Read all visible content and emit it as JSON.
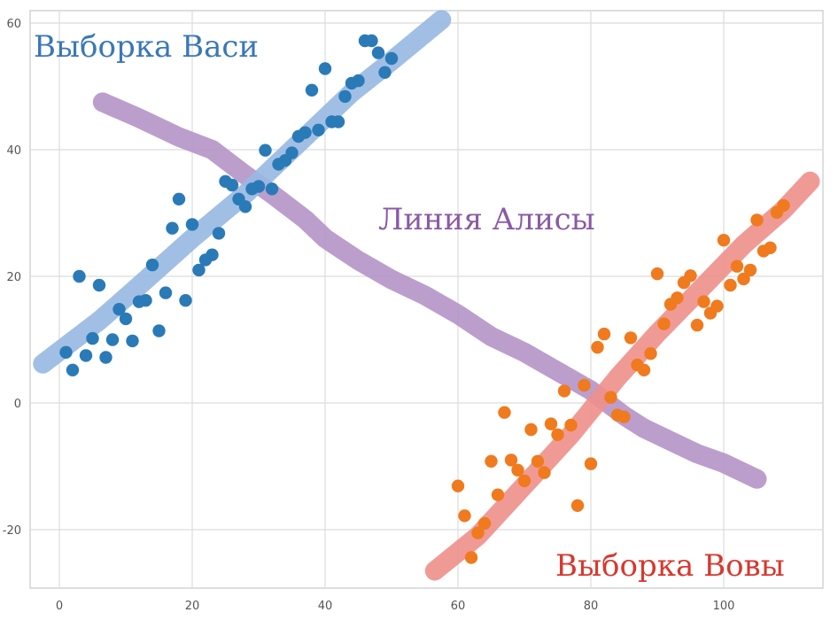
{
  "chart_data": {
    "type": "scatter",
    "xlim": [
      -4,
      115
    ],
    "ylim": [
      -29,
      62
    ],
    "grid": true,
    "x_ticks": [
      0,
      20,
      40,
      60,
      80,
      100
    ],
    "y_ticks": [
      60,
      40,
      20,
      0,
      -20
    ],
    "series": [
      {
        "name": "Выборка Васи",
        "color": "#2a7ab8",
        "points": [
          [
            1,
            8
          ],
          [
            2,
            5.2
          ],
          [
            3,
            20
          ],
          [
            4,
            7.5
          ],
          [
            5,
            10.2
          ],
          [
            6,
            18.6
          ],
          [
            7,
            7.2
          ],
          [
            8,
            10
          ],
          [
            9,
            14.8
          ],
          [
            10,
            13.3
          ],
          [
            11,
            9.8
          ],
          [
            12,
            16
          ],
          [
            13,
            16.2
          ],
          [
            14,
            21.8
          ],
          [
            15,
            11.4
          ],
          [
            16,
            17.4
          ],
          [
            17,
            27.6
          ],
          [
            18,
            32.2
          ],
          [
            19,
            16.2
          ],
          [
            20,
            28.2
          ],
          [
            21,
            21
          ],
          [
            22,
            22.6
          ],
          [
            23,
            23.4
          ],
          [
            24,
            26.8
          ],
          [
            25,
            35
          ],
          [
            26,
            34.4
          ],
          [
            27,
            32.2
          ],
          [
            28,
            31
          ],
          [
            29,
            33.8
          ],
          [
            30,
            34.2
          ],
          [
            31,
            39.9
          ],
          [
            32,
            33.8
          ],
          [
            33,
            37.7
          ],
          [
            34,
            38.3
          ],
          [
            35,
            39.5
          ],
          [
            36,
            42.1
          ],
          [
            37,
            42.7
          ],
          [
            38,
            49.4
          ],
          [
            39,
            43.1
          ],
          [
            40,
            52.8
          ],
          [
            41,
            44.4
          ],
          [
            42,
            44.4
          ],
          [
            43,
            48.4
          ],
          [
            44,
            50.5
          ],
          [
            45,
            50.9
          ],
          [
            46,
            57.2
          ],
          [
            47,
            57.2
          ],
          [
            48,
            55.3
          ],
          [
            49,
            52.2
          ],
          [
            50,
            54.4
          ]
        ]
      },
      {
        "name": "Выборка Вовы",
        "color": "#f07a1e",
        "points": [
          [
            60,
            -13.1
          ],
          [
            61,
            -17.8
          ],
          [
            62,
            -24.4
          ],
          [
            63,
            -20.5
          ],
          [
            64,
            -19
          ],
          [
            65,
            -9.2
          ],
          [
            66,
            -14.5
          ],
          [
            67,
            -1.5
          ],
          [
            68,
            -9
          ],
          [
            69,
            -10.6
          ],
          [
            70,
            -12.3
          ],
          [
            71,
            -4.2
          ],
          [
            72,
            -9.2
          ],
          [
            73,
            -11
          ],
          [
            74,
            -3.3
          ],
          [
            75,
            -5
          ],
          [
            76,
            1.9
          ],
          [
            77,
            -3.5
          ],
          [
            78,
            -16.2
          ],
          [
            79,
            2.8
          ],
          [
            80,
            -9.6
          ],
          [
            81,
            8.8
          ],
          [
            82,
            10.9
          ],
          [
            83,
            0.9
          ],
          [
            84,
            -1.9
          ],
          [
            85,
            -2.2
          ],
          [
            86,
            10.3
          ],
          [
            87,
            6
          ],
          [
            88,
            5.2
          ],
          [
            89,
            7.8
          ],
          [
            90,
            20.4
          ],
          [
            91,
            12.5
          ],
          [
            92,
            15.6
          ],
          [
            93,
            16.6
          ],
          [
            94,
            19
          ],
          [
            95,
            20.1
          ],
          [
            96,
            12.3
          ],
          [
            97,
            16
          ],
          [
            98,
            14.2
          ],
          [
            99,
            15.3
          ],
          [
            100,
            25.7
          ],
          [
            101,
            18.6
          ],
          [
            102,
            21.6
          ],
          [
            103,
            19.6
          ],
          [
            104,
            21
          ],
          [
            105,
            28.9
          ],
          [
            106,
            24
          ],
          [
            107,
            24.5
          ],
          [
            108,
            30.1
          ],
          [
            109,
            31.2
          ]
        ]
      },
      {
        "name": "Линия Алисы",
        "color": "#b593c8",
        "line": [
          [
            6.5,
            47.5
          ],
          [
            12,
            45
          ],
          [
            18,
            42
          ],
          [
            23,
            40
          ],
          [
            28,
            36
          ],
          [
            32,
            33
          ],
          [
            37,
            29
          ],
          [
            40,
            26
          ],
          [
            45,
            22.5
          ],
          [
            50,
            19.5
          ],
          [
            55,
            17
          ],
          [
            60,
            14
          ],
          [
            65,
            10.5
          ],
          [
            70,
            8
          ],
          [
            75,
            5
          ],
          [
            80,
            2
          ],
          [
            85,
            -2
          ],
          [
            88,
            -4
          ],
          [
            92,
            -6
          ],
          [
            96,
            -8
          ],
          [
            100,
            -9.5
          ],
          [
            105,
            -12
          ]
        ]
      },
      {
        "name": "",
        "color": "#97b8e2",
        "line": [
          [
            -2.5,
            6.2
          ],
          [
            6,
            13
          ],
          [
            12,
            18.5
          ],
          [
            20,
            26
          ],
          [
            28,
            33
          ],
          [
            36,
            41
          ],
          [
            44,
            49
          ],
          [
            50,
            54
          ],
          [
            57.5,
            60.5
          ]
        ]
      },
      {
        "name": "",
        "color": "#ee8f8b",
        "line": [
          [
            56.5,
            -26.5
          ],
          [
            63,
            -21
          ],
          [
            70,
            -13
          ],
          [
            77,
            -5
          ],
          [
            84,
            4
          ],
          [
            90,
            11
          ],
          [
            97,
            18.5
          ],
          [
            103,
            25
          ],
          [
            109,
            30.5
          ],
          [
            113,
            35
          ]
        ]
      }
    ],
    "annotations": [
      {
        "text": "Выборка Васи",
        "color": "#3a77b8"
      },
      {
        "text": "Линия Алисы",
        "color": "#8b5aa6"
      },
      {
        "text": "Выборка Вовы",
        "color": "#d7382e"
      }
    ]
  }
}
